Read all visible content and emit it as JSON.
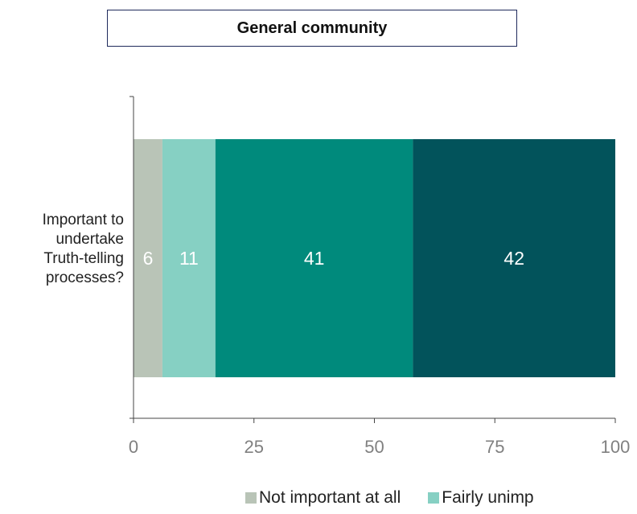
{
  "chart_data": {
    "type": "bar",
    "orientation": "horizontal",
    "stacked": true,
    "title": "General community",
    "categories": [
      "Important to\nundertake\nTruth-telling\nprocesses?"
    ],
    "series": [
      {
        "name": "Not important at all",
        "values": [
          6
        ],
        "color": "#b9c4b7"
      },
      {
        "name": "Fairly unimp",
        "values": [
          11
        ],
        "color": "#86d0c3"
      },
      {
        "values": [
          41
        ],
        "color": "#008a7c"
      },
      {
        "values": [
          42
        ],
        "color": "#02535b"
      }
    ],
    "xlim": [
      0,
      100
    ],
    "xticks": [
      "0",
      "25",
      "50",
      "75",
      "100"
    ],
    "data_labels": [
      "6",
      "11",
      "41",
      "42"
    ],
    "legend": [
      "Not important at all",
      "Fairly unimp"
    ],
    "legend_position": "bottom",
    "grid": false
  }
}
